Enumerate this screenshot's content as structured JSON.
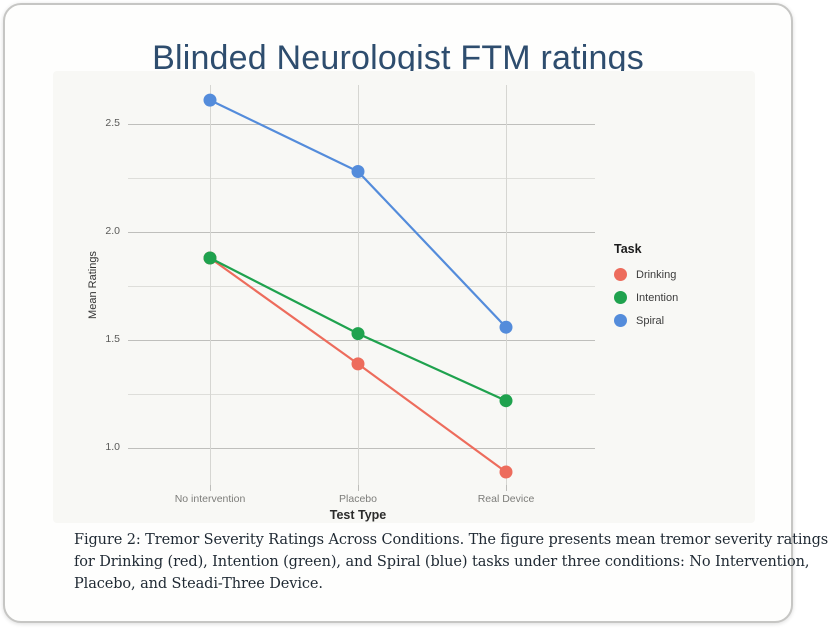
{
  "header": {
    "title": "Blinded Neurologist FTM ratings",
    "title_color": "#2e4d6e"
  },
  "chart_data": {
    "type": "line",
    "title": "Blinded Neurologist FTM ratings",
    "categories": [
      "No intervention",
      "Placebo",
      "Real Device"
    ],
    "series": [
      {
        "name": "Drinking",
        "color": "#ed6c5c",
        "values": [
          1.88,
          1.39,
          0.89
        ]
      },
      {
        "name": "Intention",
        "color": "#1fa24e",
        "values": [
          1.88,
          1.53,
          1.22
        ]
      },
      {
        "name": "Spiral",
        "color": "#548cdb",
        "values": [
          2.61,
          2.28,
          1.56
        ]
      }
    ],
    "xlabel": "Test Type",
    "ylabel": "Mean Ratings",
    "ylim": [
      0.83,
      2.68
    ],
    "yticks_major": {
      "values": [
        2.5,
        2.0,
        1.5,
        1.0
      ],
      "labels": [
        "2.5",
        "2.0",
        "1.5",
        "1.0"
      ]
    },
    "yticks_minor": [
      2.25,
      1.75,
      1.25
    ],
    "legend": {
      "title": "Task",
      "position": "right"
    },
    "grid": true,
    "colors": {
      "grid_major": "#bfbfbc",
      "grid_minor": "#dededa",
      "grid_vertical": "#d6d6d2",
      "panel_background": "#f8f8f5"
    }
  },
  "caption": {
    "lines": [
      "Figure 2: Tremor Severity Ratings Across Conditions.  The figure presents mean tremor severity ratings",
      "for Drinking (red), Intention (green), and Spiral (blue) tasks under three conditions:  No Intervention,",
      "Placebo, and Steadi-Three Device."
    ]
  }
}
